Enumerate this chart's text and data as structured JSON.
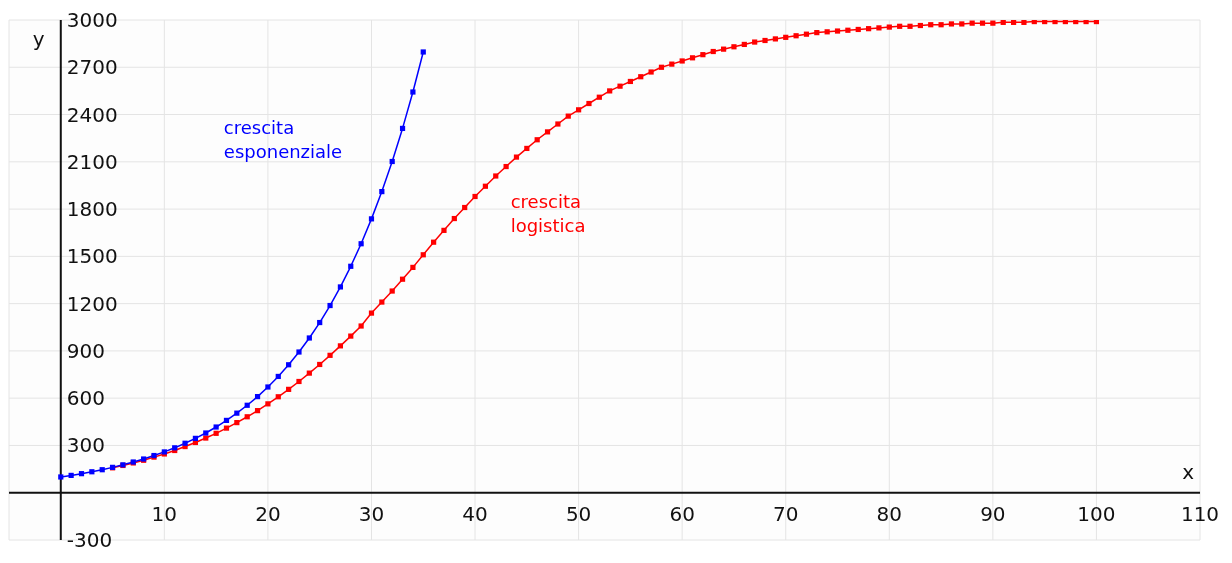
{
  "chart_data": {
    "type": "line",
    "xlabel": "x",
    "ylabel": "y",
    "xlim": [
      -5,
      110
    ],
    "ylim": [
      -300,
      3000
    ],
    "xticks": [
      10,
      20,
      30,
      40,
      50,
      60,
      70,
      80,
      90,
      100,
      110
    ],
    "yticks": [
      -300,
      300,
      600,
      900,
      1200,
      1500,
      1800,
      2100,
      2400,
      2700,
      3000
    ],
    "grid": true,
    "marker": "square",
    "line_style": "solid",
    "series": [
      {
        "name": "crescita esponenziale",
        "color": "#0000ff",
        "x": [
          0,
          1,
          2,
          3,
          4,
          5,
          6,
          7,
          8,
          9,
          10,
          11,
          12,
          13,
          14,
          15,
          16,
          17,
          18,
          19,
          20,
          21,
          22,
          23,
          24,
          25,
          26,
          27,
          28,
          29,
          30,
          31,
          32,
          33,
          34,
          35
        ],
        "values": [
          100,
          110,
          121,
          133,
          146,
          161,
          177,
          195,
          214,
          236,
          259,
          285,
          314,
          345,
          379,
          417,
          459,
          505,
          555,
          610,
          671,
          738,
          812,
          893,
          982,
          1080,
          1188,
          1306,
          1437,
          1580,
          1738,
          1911,
          2102,
          2312,
          2543,
          2797
        ]
      },
      {
        "name": "crescita logistica",
        "color": "#ff0000",
        "x": [
          5,
          6,
          7,
          8,
          9,
          10,
          11,
          12,
          13,
          14,
          15,
          16,
          17,
          18,
          19,
          20,
          21,
          22,
          23,
          24,
          25,
          26,
          27,
          28,
          29,
          30,
          31,
          32,
          33,
          34,
          35,
          36,
          37,
          38,
          39,
          40,
          41,
          42,
          43,
          44,
          45,
          46,
          47,
          48,
          49,
          50,
          51,
          52,
          53,
          54,
          55,
          56,
          57,
          58,
          59,
          60,
          61,
          62,
          63,
          64,
          65,
          66,
          67,
          68,
          69,
          70,
          71,
          72,
          73,
          74,
          75,
          76,
          77,
          78,
          79,
          80,
          81,
          82,
          83,
          84,
          85,
          86,
          87,
          88,
          89,
          90,
          91,
          92,
          93,
          94,
          95,
          96,
          97,
          98,
          99,
          100
        ],
        "values": [
          158,
          173,
          189,
          206,
          226,
          246,
          268,
          293,
          319,
          347,
          377,
          410,
          445,
          482,
          521,
          564,
          609,
          656,
          706,
          759,
          814,
          872,
          932,
          994,
          1058,
          1140,
          1210,
          1280,
          1355,
          1430,
          1510,
          1590,
          1665,
          1740,
          1810,
          1880,
          1945,
          2010,
          2070,
          2130,
          2185,
          2240,
          2290,
          2340,
          2390,
          2430,
          2470,
          2510,
          2550,
          2580,
          2610,
          2640,
          2670,
          2700,
          2720,
          2740,
          2760,
          2780,
          2800,
          2815,
          2830,
          2845,
          2860,
          2870,
          2880,
          2890,
          2900,
          2910,
          2920,
          2925,
          2930,
          2935,
          2940,
          2945,
          2950,
          2955,
          2960,
          2960,
          2965,
          2970,
          2970,
          2975,
          2975,
          2980,
          2980,
          2980,
          2985,
          2985,
          2985,
          2990,
          2990,
          2990,
          2990,
          2990,
          2990,
          2990
        ]
      }
    ]
  }
}
